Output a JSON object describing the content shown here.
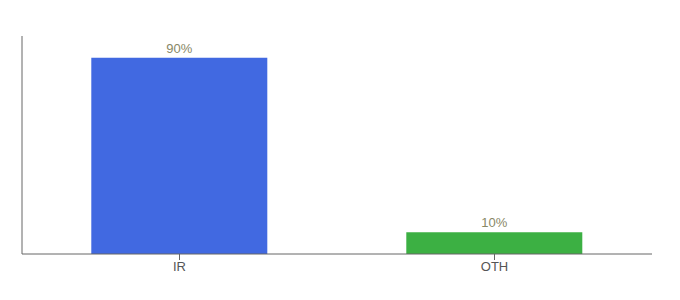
{
  "chart_data": {
    "type": "bar",
    "categories": [
      "IR",
      "OTH"
    ],
    "values": [
      90,
      10
    ],
    "value_labels": [
      "90%",
      "10%"
    ],
    "colors": [
      "#4169E1",
      "#3CB043"
    ],
    "ylim": [
      0,
      100
    ],
    "data_labels": true,
    "tick_labels": "x",
    "grid": false
  }
}
